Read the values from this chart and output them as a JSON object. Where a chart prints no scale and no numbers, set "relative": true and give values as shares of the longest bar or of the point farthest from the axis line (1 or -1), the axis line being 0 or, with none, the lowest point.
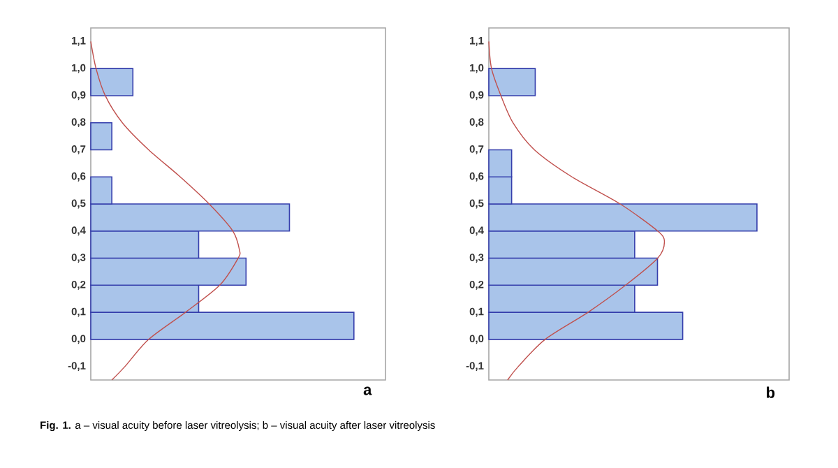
{
  "chart_data": [
    {
      "type": "histogram",
      "orientation": "horizontal",
      "relative": true,
      "color": "#a9c4ea",
      "bins": [
        0.0,
        0.1,
        0.2,
        0.3,
        0.4,
        0.5,
        0.6,
        0.7,
        0.8,
        0.9,
        1.0
      ],
      "values": [
        1,
        0.41,
        0.59,
        0.41,
        0.755,
        0.08,
        0,
        0.08,
        0,
        0.16
      ],
      "ylim": [
        -0.15,
        1.15
      ],
      "yticks": [
        {
          "value": -0.1,
          "label": "-0,1"
        },
        {
          "value": 0.0,
          "label": "0,0"
        },
        {
          "value": 0.1,
          "label": "0,1"
        },
        {
          "value": 0.2,
          "label": "0,2"
        },
        {
          "value": 0.3,
          "label": "0,3"
        },
        {
          "value": 0.4,
          "label": "0,4"
        },
        {
          "value": 0.5,
          "label": "0,5"
        },
        {
          "value": 0.6,
          "label": "0,6"
        },
        {
          "value": 0.7,
          "label": "0,7"
        },
        {
          "value": 0.8,
          "label": "0,8"
        },
        {
          "value": 0.9,
          "label": "0,9"
        },
        {
          "value": 1.0,
          "label": "1,0"
        },
        {
          "value": 1.1,
          "label": "1,1"
        }
      ],
      "tick_labels": "y",
      "series": [
        {
          "type": "line",
          "color": "#c0504d",
          "x": [
            -0.15,
            -0.1,
            0.0,
            0.1,
            0.2,
            0.3,
            0.33,
            0.4,
            0.5,
            0.6,
            0.7,
            0.8,
            0.9,
            1.0,
            1.1
          ],
          "values": [
            0.08,
            0.13,
            0.22,
            0.36,
            0.49,
            0.56,
            0.565,
            0.54,
            0.45,
            0.34,
            0.22,
            0.12,
            0.055,
            0.02,
            0.0
          ]
        }
      ],
      "annotations": [
        "a",
        "**Fig. 1.** a – visual acuity before laser vitreolysis; b – visual acuity after laser vitreolysis"
      ]
    },
    {
      "type": "histogram",
      "orientation": "horizontal",
      "relative": true,
      "color": "#a9c4ea",
      "bins": [
        0.0,
        0.1,
        0.2,
        0.3,
        0.4,
        0.5,
        0.6,
        0.7,
        0.8,
        0.9,
        1.0
      ],
      "values": [
        0.723,
        0.544,
        0.629,
        0.544,
        1,
        0.085,
        0.085,
        0,
        0,
        0.173
      ],
      "ylim": [
        -0.15,
        1.15
      ],
      "yticks": [
        {
          "value": -0.1,
          "label": "-0,1"
        },
        {
          "value": 0.0,
          "label": "0,0"
        },
        {
          "value": 0.1,
          "label": "0,1"
        },
        {
          "value": 0.2,
          "label": "0,2"
        },
        {
          "value": 0.3,
          "label": "0,3"
        },
        {
          "value": 0.4,
          "label": "0,4"
        },
        {
          "value": 0.5,
          "label": "0,5"
        },
        {
          "value": 0.6,
          "label": "0,6"
        },
        {
          "value": 0.7,
          "label": "0,7"
        },
        {
          "value": 0.8,
          "label": "0,8"
        },
        {
          "value": 0.9,
          "label": "0,9"
        },
        {
          "value": 1.0,
          "label": "1,0"
        },
        {
          "value": 1.1,
          "label": "1,1"
        }
      ],
      "tick_labels": "y",
      "series": [
        {
          "type": "line",
          "color": "#c0504d",
          "x": [
            -0.15,
            -0.1,
            0.0,
            0.1,
            0.2,
            0.3,
            0.36,
            0.4,
            0.5,
            0.6,
            0.7,
            0.8,
            0.9,
            1.0,
            1.1
          ],
          "values": [
            0.07,
            0.11,
            0.21,
            0.37,
            0.51,
            0.63,
            0.655,
            0.63,
            0.49,
            0.31,
            0.17,
            0.09,
            0.045,
            0.01,
            0.0
          ]
        }
      ],
      "annotations": [
        "b"
      ]
    }
  ]
}
